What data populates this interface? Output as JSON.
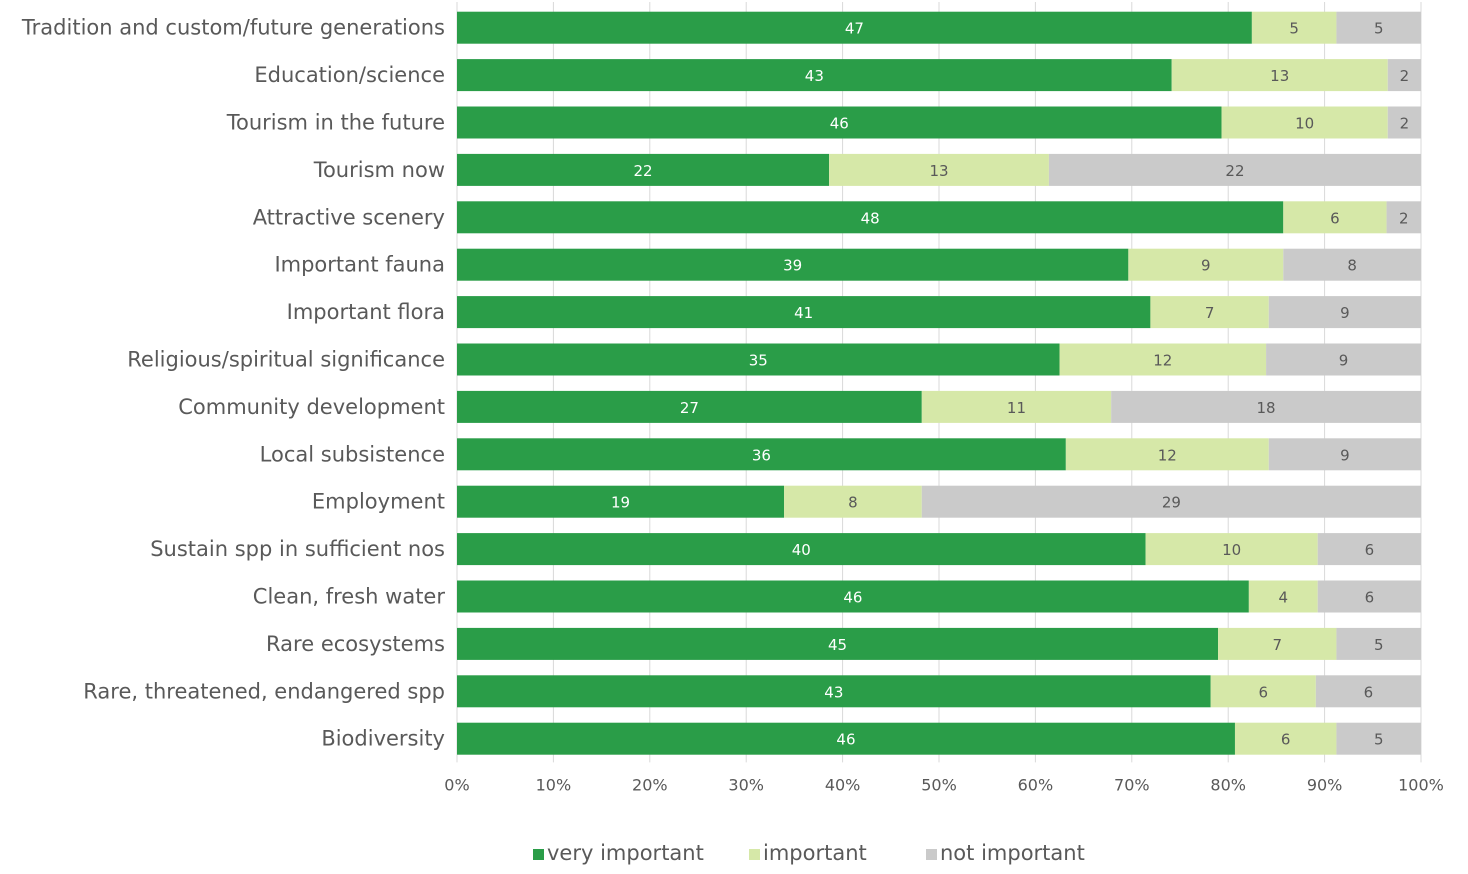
{
  "chart_data": {
    "type": "bar",
    "orientation": "horizontal",
    "stacked": "percent",
    "title": "",
    "xlabel": "",
    "ylabel": "",
    "xlim": [
      0,
      100
    ],
    "x_ticks": [
      "0%",
      "10%",
      "20%",
      "30%",
      "40%",
      "50%",
      "60%",
      "70%",
      "80%",
      "90%",
      "100%"
    ],
    "grid": true,
    "legend_position": "bottom",
    "categories": [
      "Tradition and custom/future generations",
      "Education/science",
      "Tourism in the future",
      "Tourism now",
      "Attractive scenery",
      "Important fauna",
      "Important flora",
      "Religious/spiritual significance",
      "Community development",
      "Local subsistence",
      "Employment",
      "Sustain spp in sufficient nos",
      "Clean, fresh water",
      "Rare ecosystems",
      "Rare, threatened, endangered spp",
      "Biodiversity"
    ],
    "series": [
      {
        "name": "very important",
        "color": "#2a9d48",
        "label_color": "#ffffff",
        "values": [
          47,
          43,
          46,
          22,
          48,
          39,
          41,
          35,
          27,
          36,
          19,
          40,
          46,
          45,
          43,
          46
        ]
      },
      {
        "name": "important",
        "color": "#d6e8a8",
        "label_color": "#595959",
        "values": [
          5,
          13,
          10,
          13,
          6,
          9,
          7,
          12,
          11,
          12,
          8,
          10,
          4,
          7,
          6,
          6
        ]
      },
      {
        "name": "not important",
        "color": "#cacaca",
        "label_color": "#595959",
        "values": [
          5,
          2,
          2,
          22,
          2,
          8,
          9,
          9,
          18,
          9,
          29,
          6,
          6,
          5,
          6,
          5
        ]
      }
    ]
  }
}
